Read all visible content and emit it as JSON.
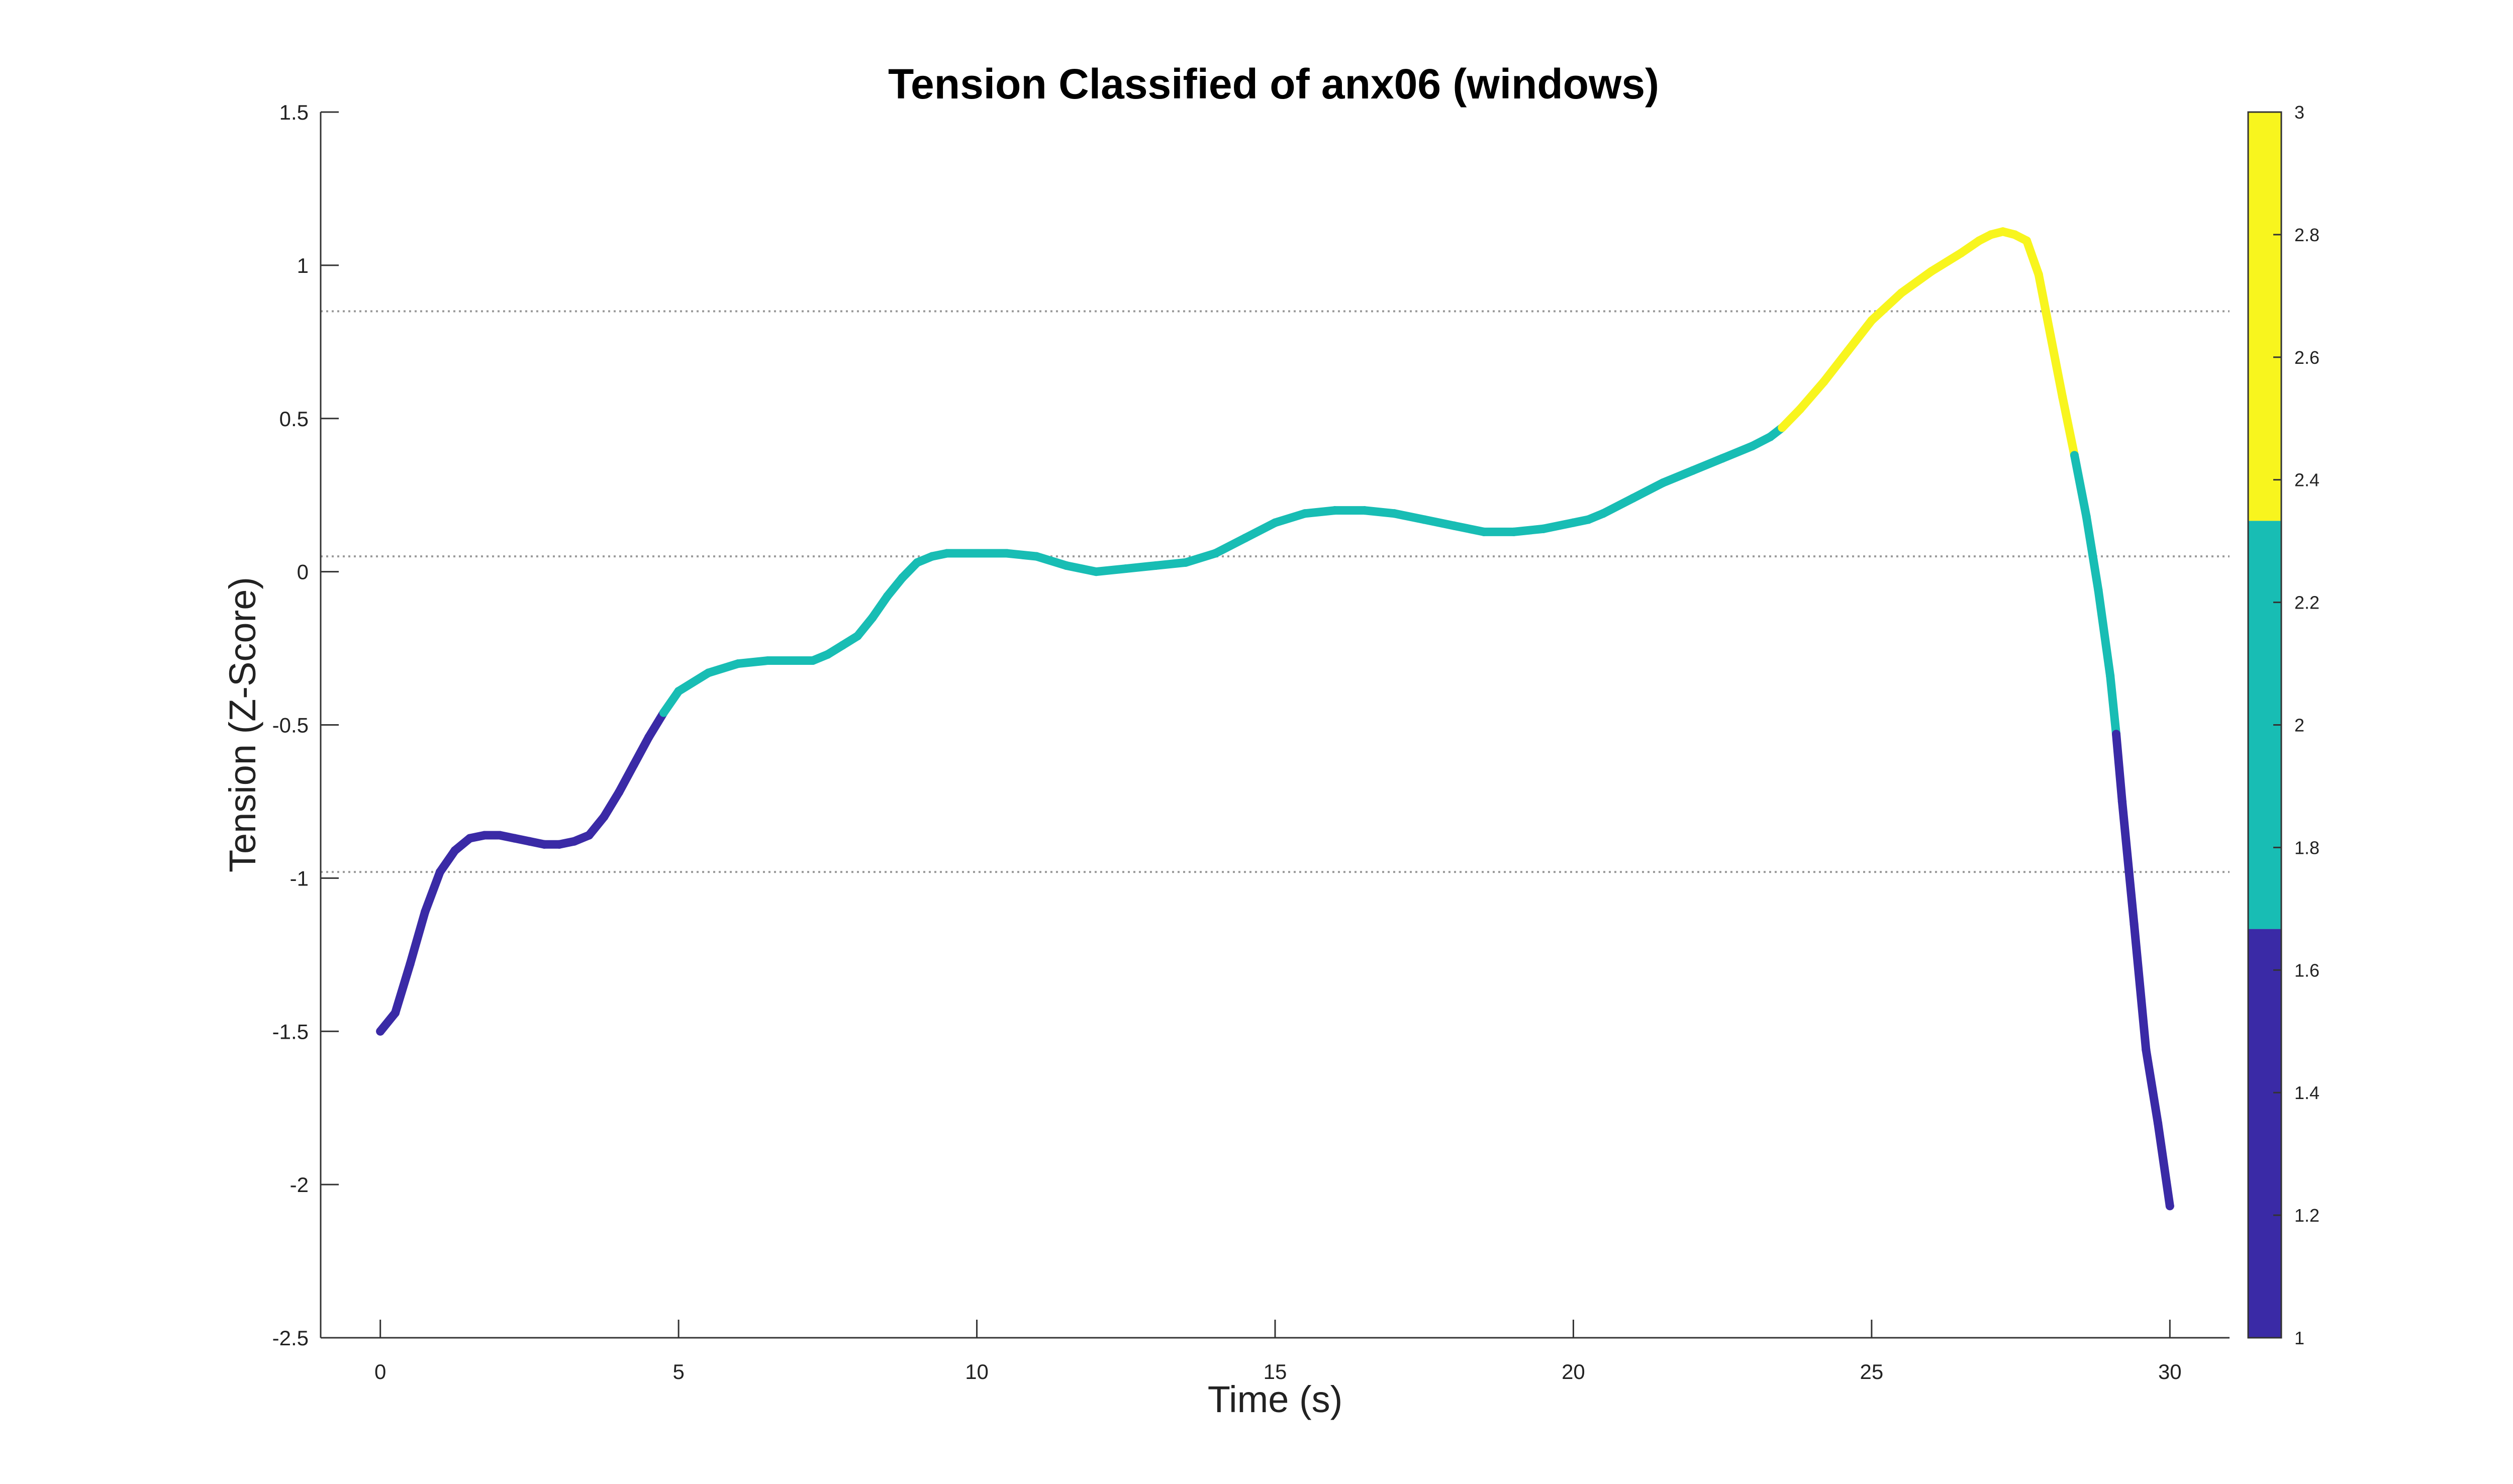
{
  "chart_data": {
    "type": "line",
    "title": "Tension Classified of anx06 (windows)",
    "xlabel": "Time (s)",
    "ylabel": "Tension (Z-Score)",
    "xlim": [
      -1,
      31
    ],
    "ylim": [
      -2.5,
      1.5
    ],
    "x_ticks": [
      0,
      5,
      10,
      15,
      20,
      25,
      30
    ],
    "x_tick_labels": [
      "0",
      "5",
      "10",
      "15",
      "20",
      "25",
      "30"
    ],
    "y_ticks": [
      1.5,
      1,
      0.5,
      0,
      -0.5,
      -1,
      -1.5,
      -2,
      -2.5
    ],
    "y_tick_labels": [
      "1.5",
      "1",
      "0.5",
      "0",
      "-0.5",
      "-1",
      "-1.5",
      "-2",
      "-2.5"
    ],
    "grid": false,
    "threshold_lines": [
      0.85,
      0.05,
      -0.98
    ],
    "class_colors": {
      "1": "#3a2aa6",
      "2": "#18bdb4",
      "3": "#f8f51e"
    },
    "series": [
      {
        "x": [
          0,
          0.25,
          0.5,
          0.75,
          1.0,
          1.25,
          1.5,
          1.75,
          2.0,
          2.25,
          2.5,
          2.75,
          3.0,
          3.25,
          3.5,
          3.75,
          4.0,
          4.25,
          4.5,
          4.75,
          5.0,
          5.5,
          6.0,
          6.5,
          7.0,
          7.25,
          7.5,
          7.75,
          8.0,
          8.25,
          8.5,
          8.75,
          9.0,
          9.25,
          9.5,
          10.0,
          10.5,
          11.0,
          11.5,
          12.0,
          12.5,
          13.0,
          13.5,
          14.0,
          14.5,
          15.0,
          15.5,
          16.0,
          16.5,
          17.0,
          17.5,
          18.0,
          18.5,
          19.0,
          19.5,
          20.0,
          20.25,
          20.5,
          21.0,
          21.5,
          22.0,
          22.5,
          23.0,
          23.3,
          23.5,
          23.8,
          24.2,
          24.6,
          25.0,
          25.5,
          26.0,
          26.5,
          26.8,
          27.0,
          27.2,
          27.4,
          27.6,
          27.8,
          28.0,
          28.2,
          28.4,
          28.6,
          28.8,
          29.0,
          29.1,
          29.2,
          29.4,
          29.6,
          29.8,
          30.0
        ],
        "y": [
          -1.5,
          -1.44,
          -1.28,
          -1.11,
          -0.98,
          -0.91,
          -0.87,
          -0.86,
          -0.86,
          -0.87,
          -0.88,
          -0.89,
          -0.89,
          -0.88,
          -0.86,
          -0.8,
          -0.72,
          -0.63,
          -0.54,
          -0.46,
          -0.39,
          -0.33,
          -0.3,
          -0.29,
          -0.29,
          -0.29,
          -0.27,
          -0.24,
          -0.21,
          -0.15,
          -0.08,
          -0.02,
          0.03,
          0.05,
          0.06,
          0.06,
          0.06,
          0.05,
          0.02,
          0.0,
          0.01,
          0.02,
          0.03,
          0.06,
          0.11,
          0.16,
          0.19,
          0.2,
          0.2,
          0.19,
          0.17,
          0.15,
          0.13,
          0.13,
          0.14,
          0.16,
          0.17,
          0.19,
          0.24,
          0.29,
          0.33,
          0.37,
          0.41,
          0.44,
          0.47,
          0.53,
          0.62,
          0.72,
          0.82,
          0.91,
          0.98,
          1.04,
          1.08,
          1.1,
          1.11,
          1.1,
          1.08,
          0.97,
          0.77,
          0.57,
          0.38,
          0.18,
          -0.06,
          -0.34,
          -0.53,
          -0.75,
          -1.15,
          -1.56,
          -1.8,
          -2.07
        ],
        "class": [
          1,
          1,
          1,
          1,
          1,
          1,
          1,
          1,
          1,
          1,
          1,
          1,
          1,
          1,
          1,
          1,
          1,
          1,
          1,
          2,
          2,
          2,
          2,
          2,
          2,
          2,
          2,
          2,
          2,
          2,
          2,
          2,
          2,
          2,
          2,
          2,
          2,
          2,
          2,
          2,
          2,
          2,
          2,
          2,
          2,
          2,
          2,
          2,
          2,
          2,
          2,
          2,
          2,
          2,
          2,
          2,
          2,
          2,
          2,
          2,
          2,
          2,
          2,
          2,
          3,
          3,
          3,
          3,
          3,
          3,
          3,
          3,
          3,
          3,
          3,
          3,
          3,
          3,
          3,
          3,
          2,
          2,
          2,
          2,
          1,
          1,
          1,
          1,
          1,
          1
        ]
      }
    ],
    "colorbar": {
      "range": [
        1,
        3
      ],
      "ticks": [
        1,
        1.2,
        1.4,
        1.6,
        1.8,
        2,
        2.2,
        2.4,
        2.6,
        2.8,
        3
      ],
      "tick_labels": [
        "1",
        "1.2",
        "1.4",
        "1.6",
        "1.8",
        "2",
        "2.2",
        "2.4",
        "2.6",
        "2.8",
        "3"
      ],
      "bands": [
        {
          "from": 1,
          "to": 1.667,
          "color": "#3a2aa6"
        },
        {
          "from": 1.667,
          "to": 2.333,
          "color": "#18bdb4"
        },
        {
          "from": 2.333,
          "to": 3,
          "color": "#f8f51e"
        }
      ]
    }
  }
}
